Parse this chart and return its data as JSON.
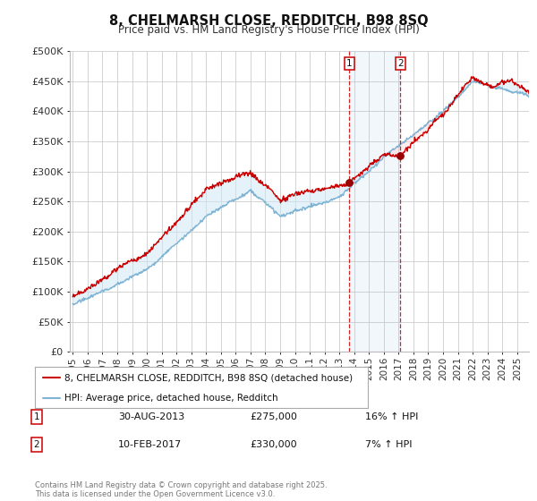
{
  "title": "8, CHELMARSH CLOSE, REDDITCH, B98 8SQ",
  "subtitle": "Price paid vs. HM Land Registry's House Price Index (HPI)",
  "ylabel_ticks": [
    "£0",
    "£50K",
    "£100K",
    "£150K",
    "£200K",
    "£250K",
    "£300K",
    "£350K",
    "£400K",
    "£450K",
    "£500K"
  ],
  "ytick_values": [
    0,
    50000,
    100000,
    150000,
    200000,
    250000,
    300000,
    350000,
    400000,
    450000,
    500000
  ],
  "ylim": [
    0,
    500000
  ],
  "xlim_start": 1994.8,
  "xlim_end": 2025.8,
  "xticks": [
    1995,
    1996,
    1997,
    1998,
    1999,
    2000,
    2001,
    2002,
    2003,
    2004,
    2005,
    2006,
    2007,
    2008,
    2009,
    2010,
    2011,
    2012,
    2013,
    2014,
    2015,
    2016,
    2017,
    2018,
    2019,
    2020,
    2021,
    2022,
    2023,
    2024,
    2025
  ],
  "hpi_color": "#7fb3d3",
  "price_color": "#cc0000",
  "background_color": "#ffffff",
  "grid_color": "#cccccc",
  "marker1_x": 2013.67,
  "marker2_x": 2017.12,
  "sale1_date": "30-AUG-2013",
  "sale1_price": "£275,000",
  "sale1_hpi": "16% ↑ HPI",
  "sale2_date": "10-FEB-2017",
  "sale2_price": "£330,000",
  "sale2_hpi": "7% ↑ HPI",
  "legend_line1": "8, CHELMARSH CLOSE, REDDITCH, B98 8SQ (detached house)",
  "legend_line2": "HPI: Average price, detached house, Redditch",
  "footer": "Contains HM Land Registry data © Crown copyright and database right 2025.\nThis data is licensed under the Open Government Licence v3.0."
}
